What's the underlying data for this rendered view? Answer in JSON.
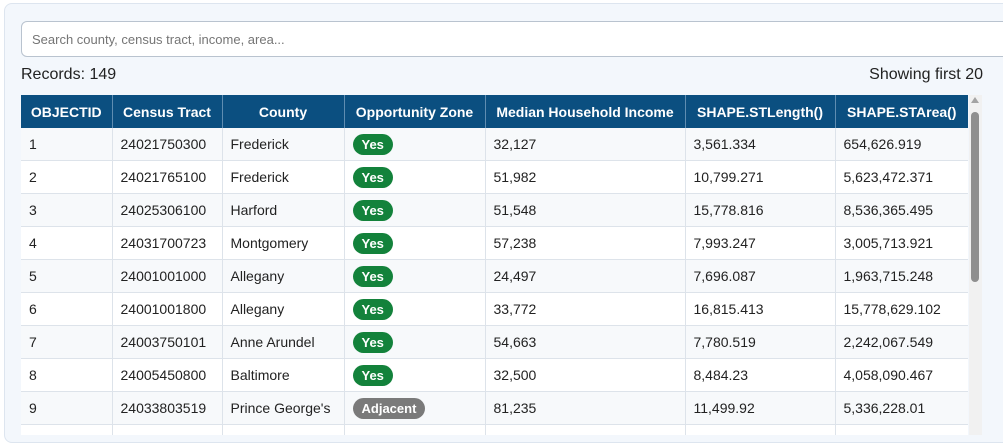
{
  "search": {
    "placeholder": "Search county, census tract, income, area...",
    "value": ""
  },
  "summary": {
    "records": "Records: 149",
    "showing": "Showing first 20"
  },
  "table": {
    "columns": [
      "OBJECTID",
      "Census Tract",
      "County",
      "Opportunity Zone",
      "Median Household Income",
      "SHAPE.STLength()",
      "SHAPE.STArea()"
    ],
    "rows": [
      [
        "1",
        "24021750300",
        "Frederick",
        "Yes",
        "32,127",
        "3,561.334",
        "654,626.919"
      ],
      [
        "2",
        "24021765100",
        "Frederick",
        "Yes",
        "51,982",
        "10,799.271",
        "5,623,472.371"
      ],
      [
        "3",
        "24025306100",
        "Harford",
        "Yes",
        "51,548",
        "15,778.816",
        "8,536,365.495"
      ],
      [
        "4",
        "24031700723",
        "Montgomery",
        "Yes",
        "57,238",
        "7,993.247",
        "3,005,713.921"
      ],
      [
        "5",
        "24001001000",
        "Allegany",
        "Yes",
        "24,497",
        "7,696.087",
        "1,963,715.248"
      ],
      [
        "6",
        "24001001800",
        "Allegany",
        "Yes",
        "33,772",
        "16,815.413",
        "15,778,629.102"
      ],
      [
        "7",
        "24003750101",
        "Anne Arundel",
        "Yes",
        "54,663",
        "7,780.519",
        "2,242,067.549"
      ],
      [
        "8",
        "24005450800",
        "Baltimore",
        "Yes",
        "32,500",
        "8,484.23",
        "4,058,090.467"
      ],
      [
        "9",
        "24033803519",
        "Prince George's",
        "Adjacent",
        "81,235",
        "11,499.92",
        "5,336,228.01"
      ]
    ]
  },
  "colors": {
    "header_bg": "#0b4f80",
    "yes_badge": "#13823b",
    "adjacent_badge": "#7a7a7a"
  }
}
